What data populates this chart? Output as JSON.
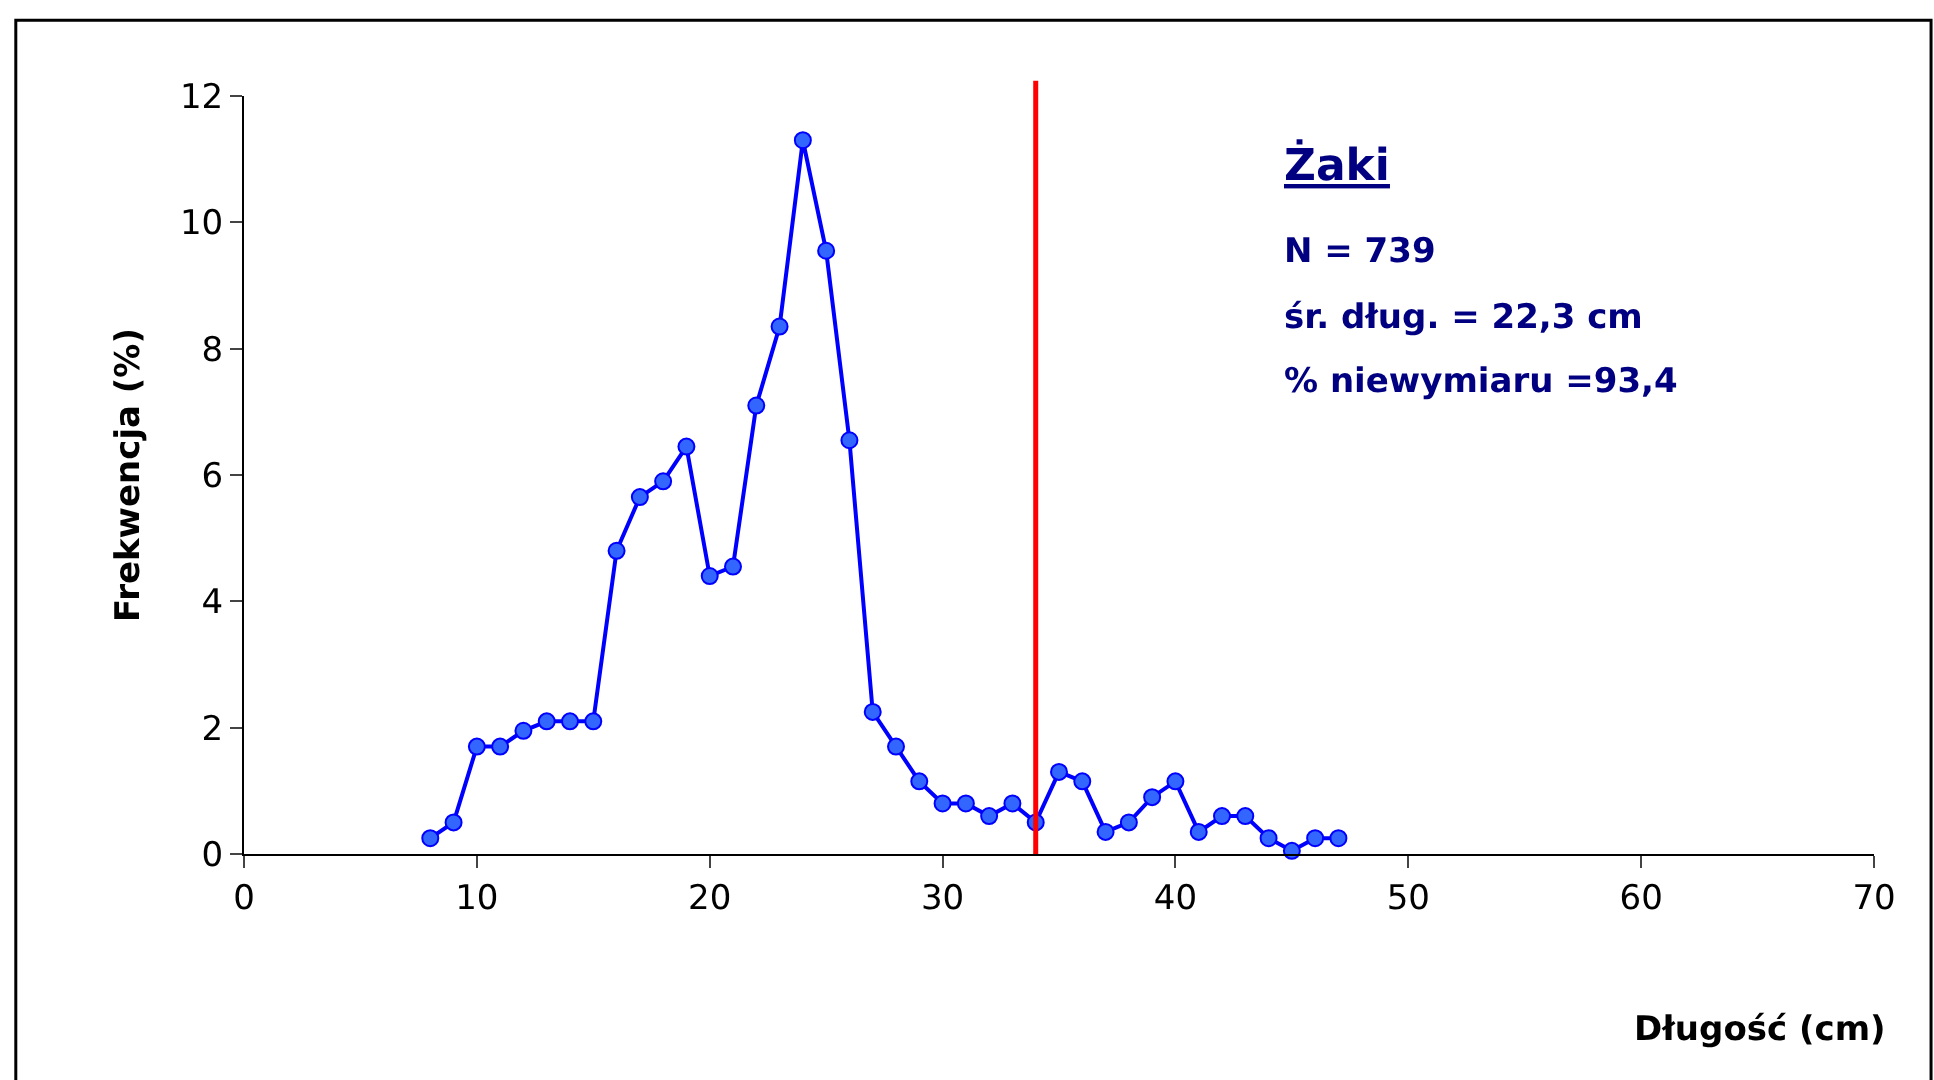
{
  "chart_data": {
    "type": "line",
    "xlabel": "Długość (cm)",
    "ylabel": "Frekwencja (%)",
    "x": [
      8,
      9,
      10,
      11,
      12,
      13,
      14,
      15,
      16,
      17,
      18,
      19,
      20,
      21,
      22,
      23,
      24,
      25,
      26,
      27,
      28,
      29,
      30,
      31,
      32,
      33,
      34,
      35,
      36,
      37,
      38,
      39,
      40,
      41,
      42,
      43,
      44,
      45,
      46,
      47
    ],
    "series": [
      {
        "color": "#0000ff",
        "values": [
          0.25,
          0.5,
          1.7,
          1.7,
          1.95,
          2.1,
          2.1,
          2.1,
          4.8,
          5.65,
          5.9,
          6.45,
          4.4,
          4.55,
          7.1,
          8.35,
          11.3,
          9.55,
          6.55,
          2.25,
          1.7,
          1.15,
          0.8,
          0.8,
          0.6,
          0.8,
          0.5,
          1.3,
          1.15,
          0.35,
          0.5,
          0.9,
          1.15,
          0.35,
          0.6,
          0.6,
          0.25,
          0.05,
          0.25,
          0.25
        ]
      }
    ],
    "marker": "circle",
    "line_style": "solid",
    "legend": false,
    "xlim": [
      0,
      70
    ],
    "xticks": [
      0,
      10,
      20,
      30,
      40,
      50,
      60,
      70
    ],
    "ylim": [
      0,
      12
    ],
    "yticks": [
      0,
      2,
      4,
      6,
      8,
      10,
      12
    ],
    "ref_lines": [
      {
        "axis": "x",
        "value": 34,
        "color": "#ff0000"
      }
    ],
    "annotations": [
      "Żaki",
      "N = 739",
      "śr. dług. = 22,3 cm",
      "% niewymiaru =93,4"
    ]
  }
}
